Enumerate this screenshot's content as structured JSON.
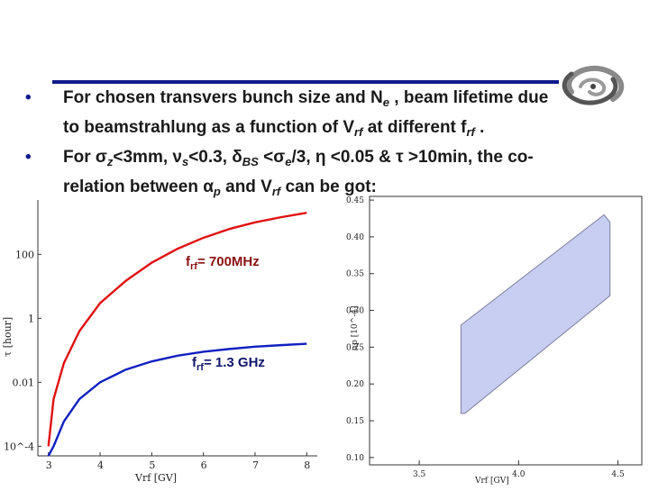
{
  "bullets": [
    {
      "line1": "For chosen transvers bunch size and N",
      "line1_sub": "e",
      "line1_rest": " , beam lifetime due",
      "line2": "to beamstrahlung as a function of V",
      "line2_sub": "rf",
      "line2_mid": " at different f",
      "line2_sub2": "rf",
      "line2_end": " ."
    },
    {
      "line1": "For σ",
      "line1_sub": "z",
      "line1_b": "<3mm, ν",
      "line1_sub2": "s",
      "line1_c": "<0.3, δ",
      "line1_sub3": "BS",
      "line1_d": " <σ",
      "line1_sub4": "e",
      "line1_e": "/3, η <0.05 & τ >10min, the co-",
      "line2": "relation between α",
      "line2_sub": "p",
      "line2_mid": " and V",
      "line2_sub2": "rf",
      "line2_end": " can be got:"
    }
  ],
  "chart_data": [
    {
      "type": "line",
      "xlabel": "Vrf [GV]",
      "ylabel": "τ [hour]",
      "yscale": "log",
      "xlim": [
        2.9,
        8.1
      ],
      "x_ticks": [
        3,
        4,
        5,
        6,
        7,
        8
      ],
      "y_ticks": [
        "10^-4",
        "0.01",
        "1",
        "100"
      ],
      "y_tick_values": [
        0.0001,
        0.01,
        1,
        100
      ],
      "series": [
        {
          "name": "f_rf = 700MHz",
          "label_main": "f",
          "label_sub": "rf",
          "label_rest": "= 700MHz",
          "color": "#e01010",
          "x": [
            3.0,
            3.1,
            3.3,
            3.6,
            4.0,
            4.5,
            5.0,
            5.5,
            6.0,
            6.5,
            7.0,
            7.5,
            8.0
          ],
          "y": [
            0.0001,
            0.003,
            0.04,
            0.4,
            3,
            15,
            55,
            150,
            330,
            620,
            1000,
            1450,
            2000
          ]
        },
        {
          "name": "f_rf = 1.3 GHz",
          "label_main": "f",
          "label_sub": "rf",
          "label_rest": "= 1.3 GHz",
          "color": "#1020c0",
          "x": [
            3.0,
            3.1,
            3.3,
            3.6,
            4.0,
            4.5,
            5.0,
            5.5,
            6.0,
            6.5,
            7.0,
            7.5,
            8.0
          ],
          "y": [
            5e-05,
            0.0001,
            0.0006,
            0.003,
            0.01,
            0.025,
            0.045,
            0.068,
            0.09,
            0.11,
            0.13,
            0.145,
            0.16
          ]
        }
      ]
    },
    {
      "type": "area",
      "xlabel": "Vrf [GV]",
      "ylabel": "αp [10^-4]",
      "xlim": [
        3.25,
        4.62
      ],
      "ylim": [
        0.09,
        0.455
      ],
      "x_ticks": [
        "3.5",
        "4.0",
        "4.5"
      ],
      "x_tick_values": [
        3.5,
        4.0,
        4.5
      ],
      "y_ticks": [
        "0.10",
        "0.15",
        "0.20",
        "0.25",
        "0.30",
        "0.35",
        "0.40",
        "0.45"
      ],
      "y_tick_values": [
        0.1,
        0.15,
        0.2,
        0.25,
        0.3,
        0.35,
        0.4,
        0.45
      ],
      "fill_color": "#c8cdf2",
      "edge_color": "#7a7f9a",
      "polygon": [
        [
          3.71,
          0.28
        ],
        [
          4.43,
          0.43
        ],
        [
          4.46,
          0.42
        ],
        [
          4.46,
          0.32
        ],
        [
          3.73,
          0.16
        ],
        [
          3.71,
          0.16
        ]
      ]
    }
  ]
}
